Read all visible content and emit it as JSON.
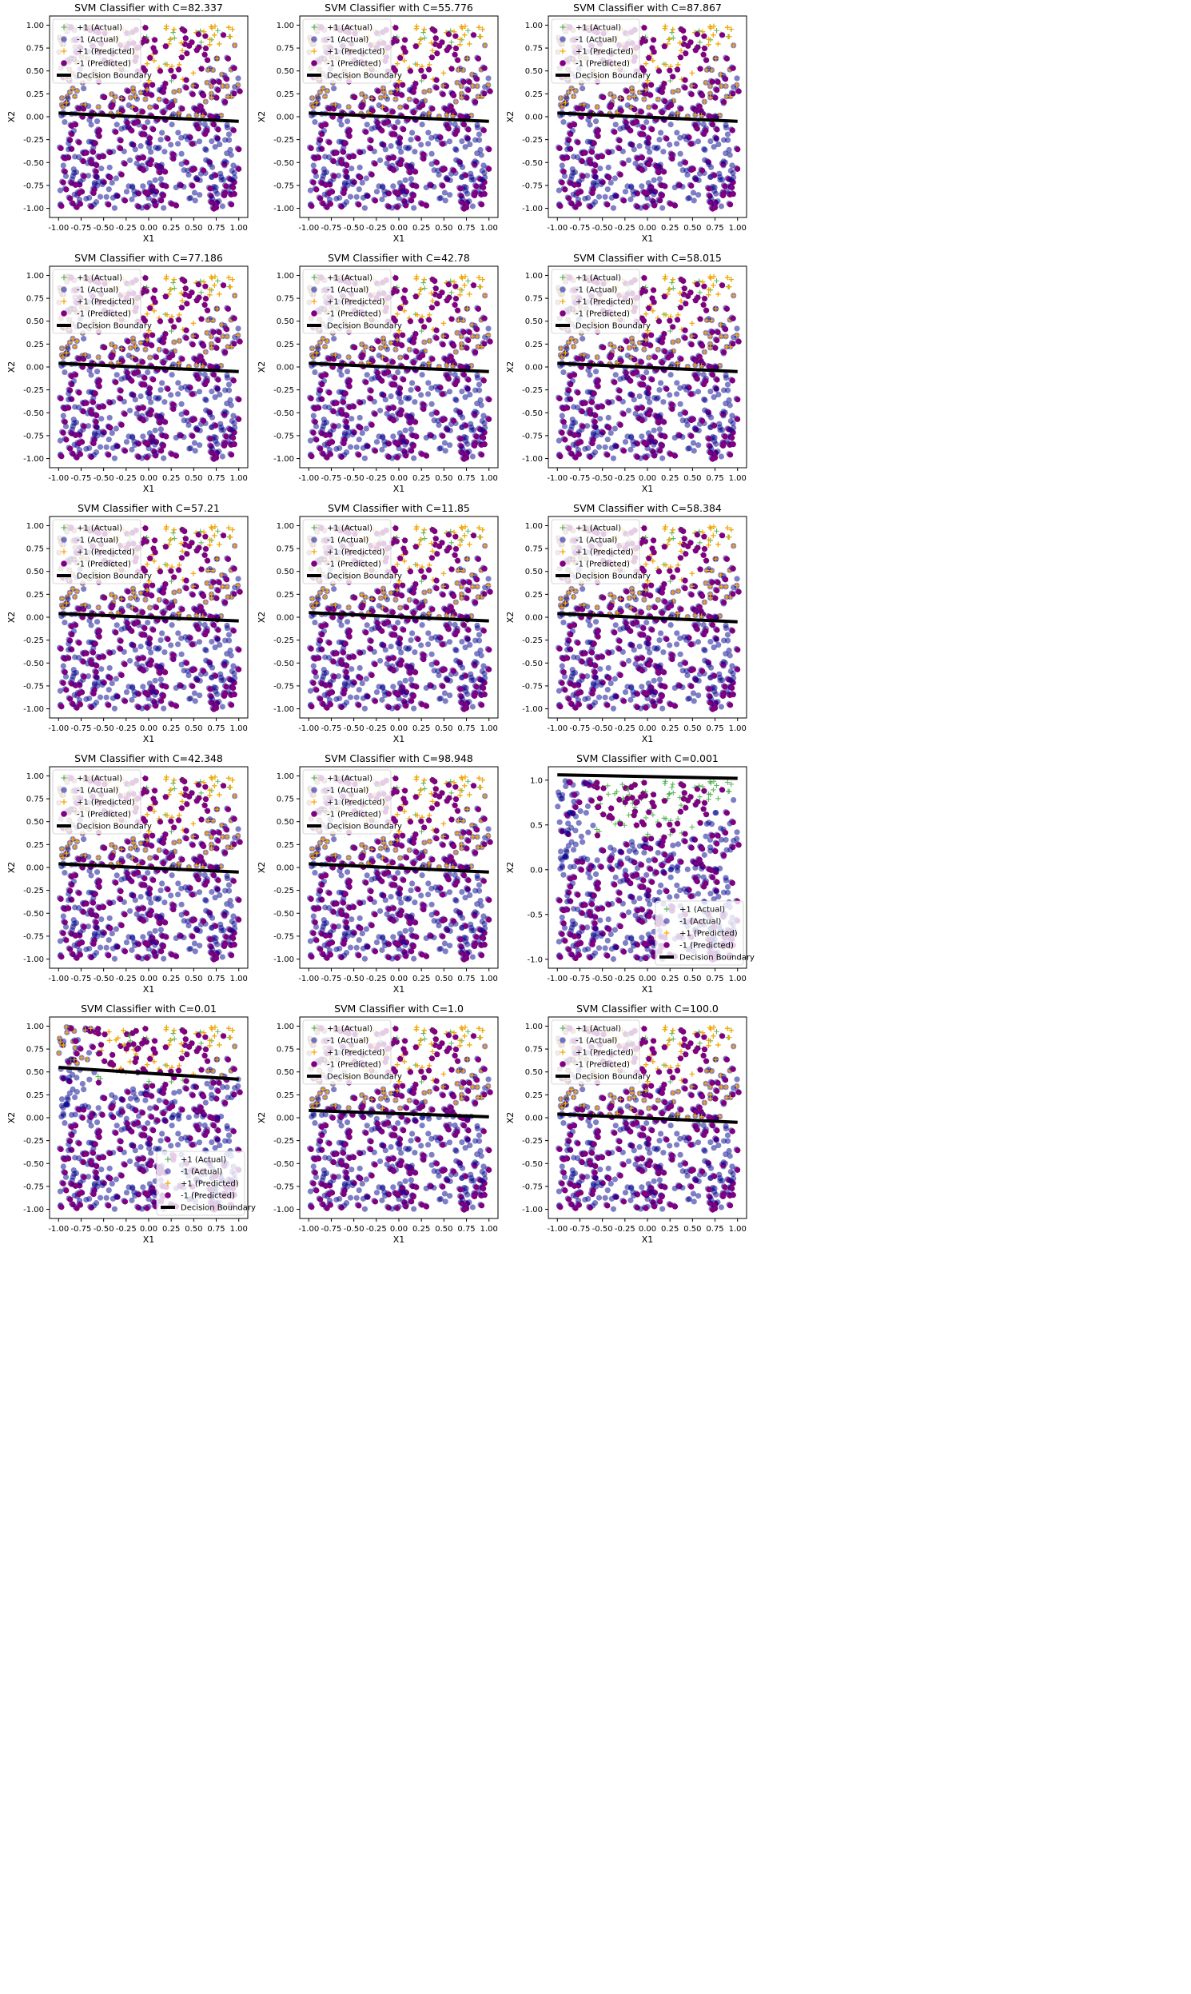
{
  "figure": {
    "background": "#ffffff",
    "colors": {
      "actual_pos": "#2ca02c",
      "actual_neg": "#00008b",
      "pred_pos": "#ffa500",
      "pred_neg": "#800080",
      "boundary": "#000000"
    },
    "legend_entries": [
      "+1 (Actual)",
      "-1 (Actual)",
      "+1 (Predicted)",
      "-1 (Predicted)",
      "Decision Boundary"
    ],
    "xlabel": "X1",
    "ylabel": "X2"
  },
  "chart_data": [
    {
      "type": "scatter",
      "title": "SVM Classifier with C=82.337",
      "xlabel": "X1",
      "ylabel": "X2",
      "xlim": [
        -1.1,
        1.1
      ],
      "ylim": [
        -1.1,
        1.1
      ],
      "xticks": [
        "-1.00",
        "-0.75",
        "-0.50",
        "-0.25",
        "0.00",
        "0.25",
        "0.50",
        "0.75",
        "1.00"
      ],
      "yticks": [
        "-1.00",
        "-0.75",
        "-0.50",
        "-0.25",
        "0.00",
        "0.25",
        "0.50",
        "0.75",
        "1.00"
      ],
      "boundary": [
        [
          -1.0,
          0.04
        ],
        [
          1.0,
          -0.05
        ]
      ],
      "legend": "upper-left",
      "legend_entries": [
        "+1 (Actual)",
        "-1 (Actual)",
        "+1 (Predicted)",
        "-1 (Predicted)",
        "Decision Boundary"
      ]
    },
    {
      "type": "scatter",
      "title": "SVM Classifier with C=55.776",
      "xlabel": "X1",
      "ylabel": "X2",
      "xlim": [
        -1.1,
        1.1
      ],
      "ylim": [
        -1.1,
        1.1
      ],
      "xticks": [
        "-1.00",
        "-0.75",
        "-0.50",
        "-0.25",
        "0.00",
        "0.25",
        "0.50",
        "0.75",
        "1.00"
      ],
      "yticks": [
        "-1.00",
        "-0.75",
        "-0.50",
        "-0.25",
        "0.00",
        "0.25",
        "0.50",
        "0.75",
        "1.00"
      ],
      "boundary": [
        [
          -1.0,
          0.04
        ],
        [
          1.0,
          -0.05
        ]
      ],
      "legend": "upper-left",
      "legend_entries": [
        "+1 (Actual)",
        "-1 (Actual)",
        "+1 (Predicted)",
        "-1 (Predicted)",
        "Decision Boundary"
      ]
    },
    {
      "type": "scatter",
      "title": "SVM Classifier with C=87.867",
      "xlabel": "X1",
      "ylabel": "X2",
      "xlim": [
        -1.1,
        1.1
      ],
      "ylim": [
        -1.1,
        1.1
      ],
      "xticks": [
        "-1.00",
        "-0.75",
        "-0.50",
        "-0.25",
        "0.00",
        "0.25",
        "0.50",
        "0.75",
        "1.00"
      ],
      "yticks": [
        "-1.00",
        "-0.75",
        "-0.50",
        "-0.25",
        "0.00",
        "0.25",
        "0.50",
        "0.75",
        "1.00"
      ],
      "boundary": [
        [
          -1.0,
          0.04
        ],
        [
          1.0,
          -0.05
        ]
      ],
      "legend": "upper-left",
      "legend_entries": [
        "+1 (Actual)",
        "-1 (Actual)",
        "+1 (Predicted)",
        "-1 (Predicted)",
        "Decision Boundary"
      ]
    },
    {
      "type": "scatter",
      "title": "SVM Classifier with C=77.186",
      "xlabel": "X1",
      "ylabel": "X2",
      "xlim": [
        -1.1,
        1.1
      ],
      "ylim": [
        -1.1,
        1.1
      ],
      "xticks": [
        "-1.00",
        "-0.75",
        "-0.50",
        "-0.25",
        "0.00",
        "0.25",
        "0.50",
        "0.75",
        "1.00"
      ],
      "yticks": [
        "-1.00",
        "-0.75",
        "-0.50",
        "-0.25",
        "0.00",
        "0.25",
        "0.50",
        "0.75",
        "1.00"
      ],
      "boundary": [
        [
          -1.0,
          0.04
        ],
        [
          1.0,
          -0.05
        ]
      ],
      "legend": "upper-left",
      "legend_entries": [
        "+1 (Actual)",
        "-1 (Actual)",
        "+1 (Predicted)",
        "-1 (Predicted)",
        "Decision Boundary"
      ]
    },
    {
      "type": "scatter",
      "title": "SVM Classifier with C=42.78",
      "xlabel": "X1",
      "ylabel": "X2",
      "xlim": [
        -1.1,
        1.1
      ],
      "ylim": [
        -1.1,
        1.1
      ],
      "xticks": [
        "-1.00",
        "-0.75",
        "-0.50",
        "-0.25",
        "0.00",
        "0.25",
        "0.50",
        "0.75",
        "1.00"
      ],
      "yticks": [
        "-1.00",
        "-0.75",
        "-0.50",
        "-0.25",
        "0.00",
        "0.25",
        "0.50",
        "0.75",
        "1.00"
      ],
      "boundary": [
        [
          -1.0,
          0.04
        ],
        [
          1.0,
          -0.05
        ]
      ],
      "legend": "upper-left",
      "legend_entries": [
        "+1 (Actual)",
        "-1 (Actual)",
        "+1 (Predicted)",
        "-1 (Predicted)",
        "Decision Boundary"
      ]
    },
    {
      "type": "scatter",
      "title": "SVM Classifier with C=58.015",
      "xlabel": "X1",
      "ylabel": "X2",
      "xlim": [
        -1.1,
        1.1
      ],
      "ylim": [
        -1.1,
        1.1
      ],
      "xticks": [
        "-1.00",
        "-0.75",
        "-0.50",
        "-0.25",
        "0.00",
        "0.25",
        "0.50",
        "0.75",
        "1.00"
      ],
      "yticks": [
        "-1.00",
        "-0.75",
        "-0.50",
        "-0.25",
        "0.00",
        "0.25",
        "0.50",
        "0.75",
        "1.00"
      ],
      "boundary": [
        [
          -1.0,
          0.04
        ],
        [
          1.0,
          -0.05
        ]
      ],
      "legend": "upper-left",
      "legend_entries": [
        "+1 (Actual)",
        "-1 (Actual)",
        "+1 (Predicted)",
        "-1 (Predicted)",
        "Decision Boundary"
      ]
    },
    {
      "type": "scatter",
      "title": "SVM Classifier with C=57.21",
      "xlabel": "X1",
      "ylabel": "X2",
      "xlim": [
        -1.1,
        1.1
      ],
      "ylim": [
        -1.1,
        1.1
      ],
      "xticks": [
        "-1.00",
        "-0.75",
        "-0.50",
        "-0.25",
        "0.00",
        "0.25",
        "0.50",
        "0.75",
        "1.00"
      ],
      "yticks": [
        "-1.00",
        "-0.75",
        "-0.50",
        "-0.25",
        "0.00",
        "0.25",
        "0.50",
        "0.75",
        "1.00"
      ],
      "boundary": [
        [
          -1.0,
          0.04
        ],
        [
          1.0,
          -0.04
        ]
      ],
      "legend": "upper-left",
      "legend_entries": [
        "+1 (Actual)",
        "-1 (Actual)",
        "+1 (Predicted)",
        "-1 (Predicted)",
        "Decision Boundary"
      ]
    },
    {
      "type": "scatter",
      "title": "SVM Classifier with C=11.85",
      "xlabel": "X1",
      "ylabel": "X2",
      "xlim": [
        -1.1,
        1.1
      ],
      "ylim": [
        -1.1,
        1.1
      ],
      "xticks": [
        "-1.00",
        "-0.75",
        "-0.50",
        "-0.25",
        "0.00",
        "0.25",
        "0.50",
        "0.75",
        "1.00"
      ],
      "yticks": [
        "-1.00",
        "-0.75",
        "-0.50",
        "-0.25",
        "0.00",
        "0.25",
        "0.50",
        "0.75",
        "1.00"
      ],
      "boundary": [
        [
          -1.0,
          0.05
        ],
        [
          1.0,
          -0.04
        ]
      ],
      "legend": "upper-left",
      "legend_entries": [
        "+1 (Actual)",
        "-1 (Actual)",
        "+1 (Predicted)",
        "-1 (Predicted)",
        "Decision Boundary"
      ]
    },
    {
      "type": "scatter",
      "title": "SVM Classifier with C=58.384",
      "xlabel": "X1",
      "ylabel": "X2",
      "xlim": [
        -1.1,
        1.1
      ],
      "ylim": [
        -1.1,
        1.1
      ],
      "xticks": [
        "-1.00",
        "-0.75",
        "-0.50",
        "-0.25",
        "0.00",
        "0.25",
        "0.50",
        "0.75",
        "1.00"
      ],
      "yticks": [
        "-1.00",
        "-0.75",
        "-0.50",
        "-0.25",
        "0.00",
        "0.25",
        "0.50",
        "0.75",
        "1.00"
      ],
      "boundary": [
        [
          -1.0,
          0.04
        ],
        [
          1.0,
          -0.05
        ]
      ],
      "legend": "upper-left",
      "legend_entries": [
        "+1 (Actual)",
        "-1 (Actual)",
        "+1 (Predicted)",
        "-1 (Predicted)",
        "Decision Boundary"
      ]
    },
    {
      "type": "scatter",
      "title": "SVM Classifier with C=42.348",
      "xlabel": "X1",
      "ylabel": "X2",
      "xlim": [
        -1.1,
        1.1
      ],
      "ylim": [
        -1.1,
        1.1
      ],
      "xticks": [
        "-1.00",
        "-0.75",
        "-0.50",
        "-0.25",
        "0.00",
        "0.25",
        "0.50",
        "0.75",
        "1.00"
      ],
      "yticks": [
        "-1.00",
        "-0.75",
        "-0.50",
        "-0.25",
        "0.00",
        "0.25",
        "0.50",
        "0.75",
        "1.00"
      ],
      "boundary": [
        [
          -1.0,
          0.04
        ],
        [
          1.0,
          -0.05
        ]
      ],
      "legend": "upper-left",
      "legend_entries": [
        "+1 (Actual)",
        "-1 (Actual)",
        "+1 (Predicted)",
        "-1 (Predicted)",
        "Decision Boundary"
      ]
    },
    {
      "type": "scatter",
      "title": "SVM Classifier with C=98.948",
      "xlabel": "X1",
      "ylabel": "X2",
      "xlim": [
        -1.1,
        1.1
      ],
      "ylim": [
        -1.1,
        1.1
      ],
      "xticks": [
        "-1.00",
        "-0.75",
        "-0.50",
        "-0.25",
        "0.00",
        "0.25",
        "0.50",
        "0.75",
        "1.00"
      ],
      "yticks": [
        "-1.00",
        "-0.75",
        "-0.50",
        "-0.25",
        "0.00",
        "0.25",
        "0.50",
        "0.75",
        "1.00"
      ],
      "boundary": [
        [
          -1.0,
          0.04
        ],
        [
          1.0,
          -0.05
        ]
      ],
      "legend": "upper-left",
      "legend_entries": [
        "+1 (Actual)",
        "-1 (Actual)",
        "+1 (Predicted)",
        "-1 (Predicted)",
        "Decision Boundary"
      ]
    },
    {
      "type": "scatter",
      "title": "SVM Classifier with C=0.001",
      "xlabel": "X1",
      "ylabel": "X2",
      "xlim": [
        -1.1,
        1.1
      ],
      "ylim": [
        -1.1,
        1.15
      ],
      "xticks": [
        "-1.00",
        "-0.75",
        "-0.50",
        "-0.25",
        "0.00",
        "0.25",
        "0.50",
        "0.75",
        "1.00"
      ],
      "yticks": [
        "-1.0",
        "-0.5",
        "0.0",
        "0.5",
        "1.0"
      ],
      "boundary": [
        [
          -1.0,
          1.06
        ],
        [
          1.0,
          1.02
        ]
      ],
      "legend": "lower-right",
      "legend_entries": [
        "+1 (Actual)",
        "-1 (Actual)",
        "+1 (Predicted)",
        "-1 (Predicted)",
        "Decision Boundary"
      ]
    },
    {
      "type": "scatter",
      "title": "SVM Classifier with C=0.01",
      "xlabel": "X1",
      "ylabel": "X2",
      "xlim": [
        -1.1,
        1.1
      ],
      "ylim": [
        -1.1,
        1.1
      ],
      "xticks": [
        "-1.00",
        "-0.75",
        "-0.50",
        "-0.25",
        "0.00",
        "0.25",
        "0.50",
        "0.75",
        "1.00"
      ],
      "yticks": [
        "-1.00",
        "-0.75",
        "-0.50",
        "-0.25",
        "0.00",
        "0.25",
        "0.50",
        "0.75",
        "1.00"
      ],
      "boundary": [
        [
          -1.0,
          0.55
        ],
        [
          1.0,
          0.42
        ]
      ],
      "legend": "lower-right",
      "legend_entries": [
        "+1 (Actual)",
        "-1 (Actual)",
        "+1 (Predicted)",
        "-1 (Predicted)",
        "Decision Boundary"
      ]
    },
    {
      "type": "scatter",
      "title": "SVM Classifier with C=1.0",
      "xlabel": "X1",
      "ylabel": "X2",
      "xlim": [
        -1.1,
        1.1
      ],
      "ylim": [
        -1.1,
        1.1
      ],
      "xticks": [
        "-1.00",
        "-0.75",
        "-0.50",
        "-0.25",
        "0.00",
        "0.25",
        "0.50",
        "0.75",
        "1.00"
      ],
      "yticks": [
        "-1.00",
        "-0.75",
        "-0.50",
        "-0.25",
        "0.00",
        "0.25",
        "0.50",
        "0.75",
        "1.00"
      ],
      "boundary": [
        [
          -1.0,
          0.08
        ],
        [
          1.0,
          0.01
        ]
      ],
      "legend": "upper-left",
      "legend_entries": [
        "+1 (Actual)",
        "-1 (Actual)",
        "+1 (Predicted)",
        "-1 (Predicted)",
        "Decision Boundary"
      ]
    },
    {
      "type": "scatter",
      "title": "SVM Classifier with C=100.0",
      "xlabel": "X1",
      "ylabel": "X2",
      "xlim": [
        -1.1,
        1.1
      ],
      "ylim": [
        -1.1,
        1.1
      ],
      "xticks": [
        "-1.00",
        "-0.75",
        "-0.50",
        "-0.25",
        "0.00",
        "0.25",
        "0.50",
        "0.75",
        "1.00"
      ],
      "yticks": [
        "-1.00",
        "-0.75",
        "-0.50",
        "-0.25",
        "0.00",
        "0.25",
        "0.50",
        "0.75",
        "1.00"
      ],
      "boundary": [
        [
          -1.0,
          0.04
        ],
        [
          1.0,
          -0.05
        ]
      ],
      "legend": "upper-left",
      "legend_entries": [
        "+1 (Actual)",
        "-1 (Actual)",
        "+1 (Predicted)",
        "-1 (Predicted)",
        "Decision Boundary"
      ]
    }
  ]
}
